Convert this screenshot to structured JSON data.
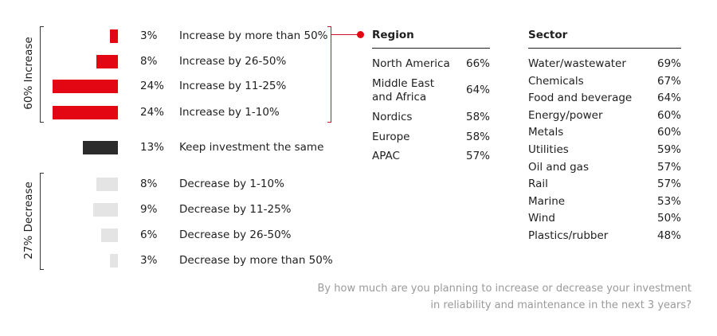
{
  "chart_data": {
    "type": "bar",
    "orientation": "horizontal",
    "groups": [
      {
        "label": "60% Increase"
      },
      {
        "label": "27% Decrease"
      }
    ],
    "categories": [
      "Increase by more than 50%",
      "Increase by 26-50%",
      "Increase by 11-25%",
      "Increase by 1-10%",
      "Keep investment the same",
      "Decrease by 1-10%",
      "Decrease by 11-25%",
      "Decrease by 26-50%",
      "Decrease by more than 50%"
    ],
    "values": [
      3,
      8,
      24,
      24,
      13,
      8,
      9,
      6,
      3
    ],
    "value_labels": [
      "3%",
      "8%",
      "24%",
      "24%",
      "13%",
      "8%",
      "9%",
      "6%",
      "3%"
    ],
    "bar_colors": [
      "#e30613",
      "#e30613",
      "#e30613",
      "#e30613",
      "#2b2b2b",
      "#e4e4e4",
      "#e4e4e4",
      "#e4e4e4",
      "#e4e4e4"
    ],
    "xlim": [
      0,
      24
    ]
  },
  "region_table": {
    "title": "Region",
    "rows": [
      {
        "label": "North America",
        "value": "66%"
      },
      {
        "label": "Middle East and Africa",
        "value": "64%"
      },
      {
        "label": "Nordics",
        "value": "58%"
      },
      {
        "label": "Europe",
        "value": "58%"
      },
      {
        "label": "APAC",
        "value": "57%"
      }
    ]
  },
  "sector_table": {
    "title": "Sector",
    "rows": [
      {
        "label": "Water/wastewater",
        "value": "69%"
      },
      {
        "label": "Chemicals",
        "value": "67%"
      },
      {
        "label": "Food and beverage",
        "value": "64%"
      },
      {
        "label": "Energy/power",
        "value": "60%"
      },
      {
        "label": "Metals",
        "value": "60%"
      },
      {
        "label": "Utilities",
        "value": "59%"
      },
      {
        "label": "Oil and gas",
        "value": "57%"
      },
      {
        "label": "Rail",
        "value": "57%"
      },
      {
        "label": "Marine",
        "value": "53%"
      },
      {
        "label": "Wind",
        "value": "50%"
      },
      {
        "label": "Plastics/rubber",
        "value": "48%"
      }
    ]
  },
  "question": "By how much are you planning to increase or decrease your investment in reliability and maintenance in the next 3 years?",
  "colors": {
    "accent": "#e30613",
    "neutral": "#2b2b2b",
    "muted": "#e4e4e4",
    "caption": "#9a9a9a"
  }
}
